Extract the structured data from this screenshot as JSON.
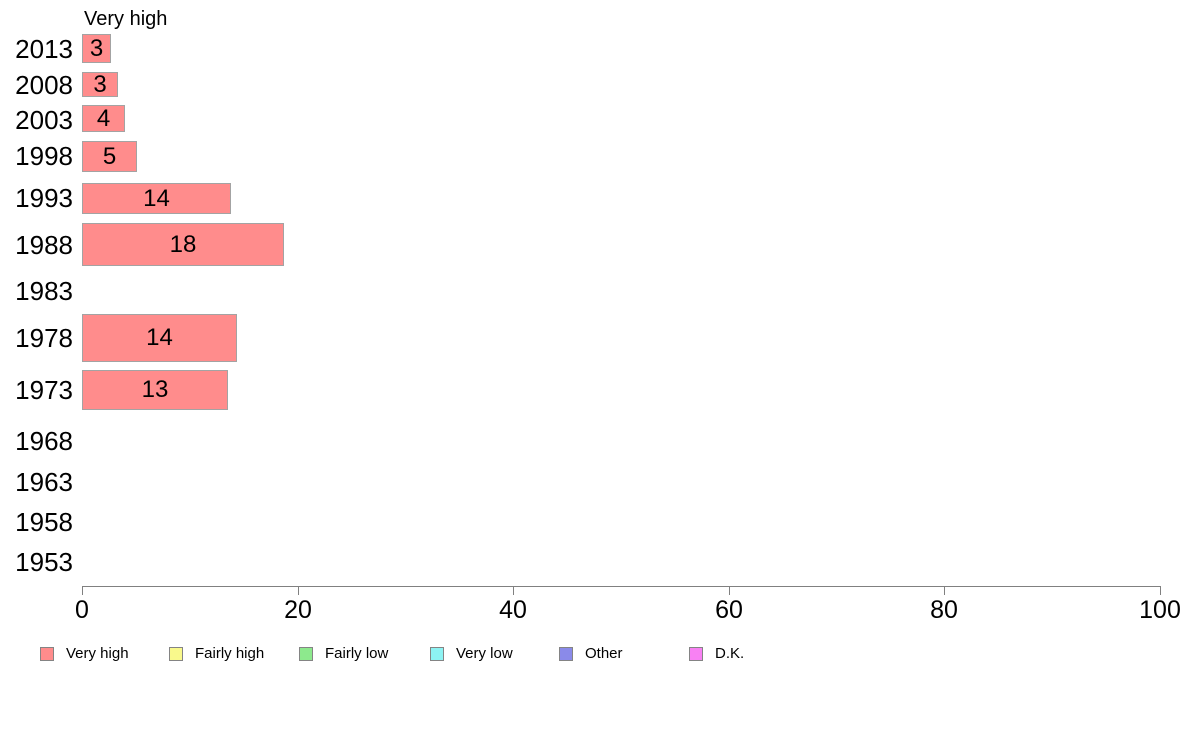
{
  "page": {
    "background": "#ffffff"
  },
  "chart_data": {
    "type": "bar",
    "orientation": "horizontal",
    "title": "Very high",
    "categories": [
      "2013",
      "2008",
      "2003",
      "1998",
      "1993",
      "1988",
      "1983",
      "1978",
      "1973",
      "1968",
      "1963",
      "1958",
      "1953"
    ],
    "values": [
      3,
      3,
      4,
      5,
      14,
      18,
      null,
      14,
      13,
      null,
      null,
      null,
      null
    ],
    "bar_lengths_estimated": [
      2.7,
      3.3,
      4.0,
      5.1,
      13.8,
      18.7,
      null,
      14.4,
      13.5,
      null,
      null,
      null,
      null
    ],
    "xlabel": "",
    "ylabel": "",
    "xlim": [
      0,
      100
    ],
    "xticks": [
      0,
      20,
      40,
      60,
      80,
      100
    ],
    "grid": false,
    "legend_position": "bottom",
    "bar_color": "#FF8C8C",
    "bar_border_color": "#A3A3A3",
    "axis_color": "#808080",
    "legend": [
      {
        "label": "Very high",
        "color": "#FF8C8C"
      },
      {
        "label": "Fairly high",
        "color": "#F9F98C"
      },
      {
        "label": "Fairly low",
        "color": "#8DE98D"
      },
      {
        "label": "Very low",
        "color": "#8DF3F3"
      },
      {
        "label": "Other",
        "color": "#8A8AE9"
      },
      {
        "label": "D.K.",
        "color": "#F881F3"
      }
    ],
    "layout_hints": {
      "title_x": 84,
      "title_y": 7,
      "plot_left": 82,
      "plot_right": 1160,
      "axis_y": 586,
      "tick_len": 9,
      "tick_label_top": 596,
      "label_centers": [
        49,
        85,
        120,
        156,
        198,
        245,
        291,
        338,
        390,
        441,
        482,
        522,
        562
      ],
      "bar_tops": [
        34,
        72,
        105,
        141,
        183,
        223,
        null,
        314,
        370,
        null,
        null,
        null,
        null
      ],
      "bar_heights": [
        29,
        25,
        27,
        31,
        31,
        43,
        null,
        48,
        40,
        null,
        null,
        null,
        null
      ],
      "legend_x": [
        40,
        169,
        299,
        430,
        559,
        689
      ],
      "legend_y": 644
    }
  }
}
